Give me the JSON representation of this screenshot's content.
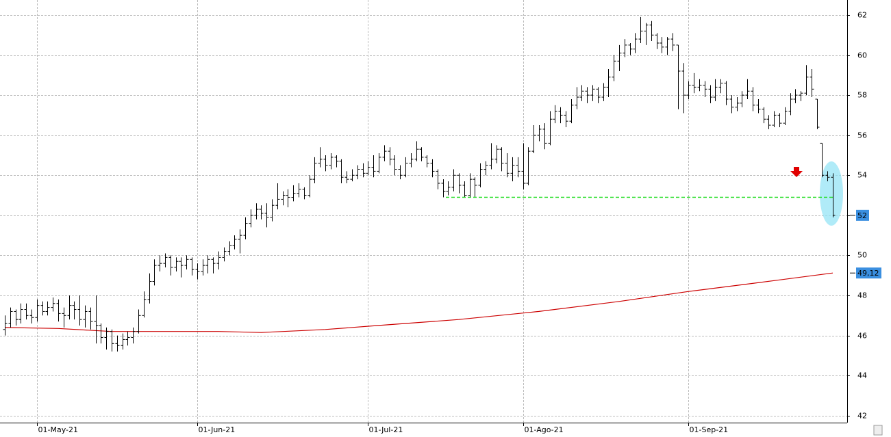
{
  "chart_data": {
    "type": "ohlc",
    "ylim": [
      41.65,
      62.75
    ],
    "yticks": [
      42,
      44,
      46,
      48,
      50,
      52,
      54,
      56,
      58,
      60,
      62
    ],
    "grid": true,
    "categories": [
      null,
      null,
      null,
      null,
      null,
      null,
      "01-May-21",
      null,
      null,
      null,
      null,
      null,
      null,
      null,
      null,
      null,
      null,
      null,
      null,
      null,
      null,
      null,
      null,
      null,
      null,
      null,
      null,
      null,
      null,
      null,
      null,
      null,
      null,
      null,
      null,
      null,
      "01-Jun-21",
      null,
      null,
      null,
      null,
      null,
      null,
      null,
      null,
      null,
      null,
      null,
      null,
      null,
      null,
      null,
      null,
      null,
      null,
      null,
      null,
      null,
      null,
      null,
      null,
      null,
      null,
      null,
      null,
      null,
      null,
      null,
      "01-Jul-21",
      null,
      null,
      null,
      null,
      null,
      null,
      null,
      null,
      null,
      null,
      null,
      null,
      null,
      null,
      null,
      null,
      null,
      null,
      null,
      null,
      null,
      null,
      null,
      null,
      null,
      null,
      null,
      null,
      "01-Ago-21",
      null,
      null,
      null,
      null,
      null,
      null,
      null,
      null,
      null,
      null,
      null,
      null,
      null,
      null,
      null,
      null,
      null,
      null,
      null,
      null,
      null,
      null,
      null,
      null,
      null,
      null,
      null,
      null,
      null,
      null,
      "01-Sep-21",
      null,
      null,
      null,
      null,
      null,
      null,
      null,
      null,
      null,
      null,
      null,
      null,
      null,
      null,
      null,
      null,
      null,
      null,
      null,
      null,
      null,
      null,
      null,
      null,
      null,
      null
    ],
    "series": [
      {
        "color": "#000000",
        "values": [
          [
            46.3,
            47.0,
            46.0,
            46.6
          ],
          [
            46.6,
            47.4,
            46.4,
            47.2
          ],
          [
            47.2,
            47.3,
            46.5,
            46.8
          ],
          [
            46.8,
            47.6,
            46.6,
            47.3
          ],
          [
            47.3,
            47.6,
            46.8,
            47.0
          ],
          [
            47.0,
            47.3,
            46.6,
            46.9
          ],
          [
            46.9,
            47.8,
            46.7,
            47.5
          ],
          [
            47.5,
            47.7,
            47.0,
            47.2
          ],
          [
            47.2,
            47.7,
            47.0,
            47.4
          ],
          [
            47.4,
            47.9,
            47.2,
            47.6
          ],
          [
            47.6,
            47.8,
            46.7,
            47.1
          ],
          [
            47.1,
            47.4,
            46.4,
            47.0
          ],
          [
            47.0,
            48.0,
            46.8,
            47.5
          ],
          [
            47.5,
            47.7,
            46.8,
            47.3
          ],
          [
            47.3,
            48.0,
            46.5,
            46.8
          ],
          [
            46.8,
            47.5,
            46.4,
            47.2
          ],
          [
            47.2,
            47.4,
            46.3,
            46.7
          ],
          [
            46.7,
            48.0,
            45.6,
            46.5
          ],
          [
            46.5,
            46.6,
            45.6,
            45.9
          ],
          [
            45.9,
            46.4,
            45.3,
            46.2
          ],
          [
            46.2,
            46.3,
            45.2,
            45.6
          ],
          [
            45.6,
            46.0,
            45.2,
            45.5
          ],
          [
            45.5,
            46.1,
            45.3,
            45.8
          ],
          [
            45.8,
            46.2,
            45.5,
            45.9
          ],
          [
            45.9,
            46.4,
            45.6,
            46.2
          ],
          [
            46.2,
            47.3,
            46.1,
            47.0
          ],
          [
            47.0,
            48.2,
            46.9,
            47.8
          ],
          [
            47.8,
            49.1,
            47.6,
            48.7
          ],
          [
            48.7,
            49.8,
            48.5,
            49.5
          ],
          [
            49.5,
            50.0,
            49.2,
            49.6
          ],
          [
            49.6,
            50.1,
            49.4,
            49.9
          ],
          [
            49.9,
            50.0,
            49.0,
            49.4
          ],
          [
            49.4,
            49.9,
            49.2,
            49.7
          ],
          [
            49.7,
            49.9,
            48.9,
            49.5
          ],
          [
            49.5,
            50.0,
            49.3,
            49.8
          ],
          [
            49.8,
            49.9,
            49.0,
            49.3
          ],
          [
            49.3,
            49.6,
            48.8,
            49.2
          ],
          [
            49.2,
            49.8,
            49.0,
            49.5
          ],
          [
            49.5,
            50.0,
            49.1,
            49.8
          ],
          [
            49.8,
            49.9,
            49.1,
            49.6
          ],
          [
            49.6,
            50.2,
            49.3,
            49.9
          ],
          [
            49.9,
            50.4,
            49.7,
            50.2
          ],
          [
            50.2,
            50.7,
            50.0,
            50.5
          ],
          [
            50.5,
            51.0,
            50.3,
            50.8
          ],
          [
            50.8,
            51.3,
            50.1,
            51.0
          ],
          [
            51.0,
            51.9,
            50.8,
            51.6
          ],
          [
            51.6,
            52.3,
            51.4,
            52.0
          ],
          [
            52.0,
            52.6,
            51.8,
            52.3
          ],
          [
            52.3,
            52.5,
            51.8,
            52.1
          ],
          [
            52.1,
            52.6,
            51.4,
            51.9
          ],
          [
            51.9,
            52.8,
            51.7,
            52.5
          ],
          [
            52.5,
            53.6,
            52.3,
            52.8
          ],
          [
            52.8,
            53.2,
            52.5,
            53.0
          ],
          [
            53.0,
            53.3,
            52.4,
            52.9
          ],
          [
            52.9,
            53.5,
            52.7,
            53.1
          ],
          [
            53.1,
            53.6,
            52.9,
            53.3
          ],
          [
            53.3,
            53.4,
            52.8,
            53.0
          ],
          [
            53.0,
            54.0,
            52.9,
            53.8
          ],
          [
            53.8,
            54.9,
            53.6,
            54.6
          ],
          [
            54.6,
            55.4,
            54.4,
            54.8
          ],
          [
            54.8,
            55.0,
            54.2,
            54.5
          ],
          [
            54.5,
            55.1,
            54.3,
            54.9
          ],
          [
            54.9,
            55.0,
            54.4,
            54.7
          ],
          [
            54.7,
            54.8,
            53.6,
            53.9
          ],
          [
            53.9,
            54.2,
            53.6,
            53.8
          ],
          [
            53.8,
            54.3,
            53.7,
            54.0
          ],
          [
            54.0,
            54.5,
            53.8,
            54.3
          ],
          [
            54.3,
            54.6,
            53.9,
            54.1
          ],
          [
            54.1,
            54.7,
            54.0,
            54.4
          ],
          [
            54.4,
            55.0,
            53.9,
            54.2
          ],
          [
            54.2,
            55.1,
            54.1,
            54.9
          ],
          [
            54.9,
            55.5,
            54.7,
            55.2
          ],
          [
            55.2,
            55.4,
            54.5,
            54.8
          ],
          [
            54.8,
            55.0,
            54.0,
            54.3
          ],
          [
            54.3,
            54.5,
            53.8,
            54.0
          ],
          [
            54.0,
            54.9,
            53.9,
            54.6
          ],
          [
            54.6,
            55.1,
            54.4,
            54.8
          ],
          [
            54.8,
            55.7,
            54.7,
            55.3
          ],
          [
            55.3,
            55.4,
            54.7,
            54.9
          ],
          [
            54.9,
            55.0,
            54.4,
            54.6
          ],
          [
            54.6,
            54.8,
            53.9,
            54.2
          ],
          [
            54.2,
            54.3,
            53.3,
            53.6
          ],
          [
            53.6,
            53.8,
            52.9,
            53.2
          ],
          [
            53.2,
            53.7,
            53.0,
            53.4
          ],
          [
            53.4,
            54.3,
            53.2,
            54.0
          ],
          [
            54.0,
            54.1,
            53.1,
            53.5
          ],
          [
            53.5,
            53.7,
            52.9,
            53.0
          ],
          [
            53.0,
            54.1,
            52.9,
            53.8
          ],
          [
            53.8,
            53.9,
            52.9,
            53.5
          ],
          [
            53.5,
            54.6,
            53.4,
            54.3
          ],
          [
            54.3,
            54.7,
            54.0,
            54.5
          ],
          [
            54.5,
            55.6,
            54.3,
            54.8
          ],
          [
            54.8,
            55.5,
            54.6,
            55.3
          ],
          [
            55.3,
            55.4,
            54.2,
            54.6
          ],
          [
            54.6,
            55.1,
            53.9,
            54.1
          ],
          [
            54.1,
            54.9,
            53.7,
            54.5
          ],
          [
            54.5,
            54.9,
            53.9,
            54.2
          ],
          [
            54.2,
            55.6,
            53.3,
            53.6
          ],
          [
            53.6,
            55.4,
            53.5,
            55.2
          ],
          [
            55.2,
            56.5,
            55.1,
            56.0
          ],
          [
            56.0,
            56.5,
            55.7,
            56.3
          ],
          [
            56.3,
            56.6,
            55.3,
            55.6
          ],
          [
            55.6,
            57.2,
            55.5,
            56.8
          ],
          [
            56.8,
            57.5,
            56.6,
            57.2
          ],
          [
            57.2,
            57.4,
            56.6,
            57.0
          ],
          [
            57.0,
            57.2,
            56.4,
            56.7
          ],
          [
            56.7,
            57.8,
            56.6,
            57.5
          ],
          [
            57.5,
            58.4,
            57.3,
            57.9
          ],
          [
            57.9,
            58.5,
            57.7,
            58.2
          ],
          [
            58.2,
            58.4,
            57.6,
            58.0
          ],
          [
            58.0,
            58.5,
            57.7,
            58.3
          ],
          [
            58.3,
            58.4,
            57.6,
            57.9
          ],
          [
            57.9,
            58.6,
            57.7,
            58.4
          ],
          [
            58.4,
            59.3,
            57.9,
            58.9
          ],
          [
            58.9,
            60.0,
            58.7,
            59.7
          ],
          [
            59.7,
            60.5,
            59.2,
            60.1
          ],
          [
            60.1,
            60.8,
            59.9,
            60.5
          ],
          [
            60.5,
            60.6,
            60.0,
            60.3
          ],
          [
            60.3,
            61.1,
            60.1,
            60.8
          ],
          [
            60.8,
            61.9,
            60.6,
            61.2
          ],
          [
            61.2,
            61.6,
            60.5,
            61.5
          ],
          [
            61.5,
            61.7,
            60.7,
            61.0
          ],
          [
            61.0,
            61.1,
            60.3,
            60.6
          ],
          [
            60.6,
            60.9,
            60.1,
            60.4
          ],
          [
            60.4,
            60.9,
            60.0,
            60.8
          ],
          [
            60.8,
            61.1,
            60.2,
            60.5
          ],
          [
            60.5,
            60.5,
            57.3,
            59.2
          ],
          [
            59.2,
            59.6,
            57.1,
            58.0
          ],
          [
            58.0,
            58.7,
            57.8,
            58.5
          ],
          [
            58.5,
            59.1,
            58.1,
            58.4
          ],
          [
            58.4,
            58.8,
            58.2,
            58.5
          ],
          [
            58.5,
            58.7,
            57.9,
            58.3
          ],
          [
            58.3,
            58.5,
            57.6,
            57.9
          ],
          [
            57.9,
            58.8,
            57.7,
            58.4
          ],
          [
            58.4,
            58.8,
            58.1,
            58.6
          ],
          [
            58.6,
            58.7,
            57.5,
            57.8
          ],
          [
            57.8,
            58.0,
            57.1,
            57.4
          ],
          [
            57.4,
            57.9,
            57.2,
            57.6
          ],
          [
            57.6,
            58.2,
            57.4,
            58.0
          ],
          [
            58.0,
            58.8,
            57.8,
            58.2
          ],
          [
            58.2,
            58.4,
            57.2,
            57.5
          ],
          [
            57.5,
            57.8,
            57.1,
            57.3
          ],
          [
            57.3,
            57.4,
            56.6,
            56.8
          ],
          [
            56.8,
            57.0,
            56.3,
            56.5
          ],
          [
            56.5,
            57.2,
            56.4,
            57.0
          ],
          [
            57.0,
            57.1,
            56.4,
            56.6
          ],
          [
            56.6,
            57.4,
            56.5,
            57.2
          ],
          [
            57.2,
            58.1,
            57.0,
            57.8
          ],
          [
            57.8,
            58.3,
            57.6,
            58.0
          ],
          [
            58.0,
            58.2,
            57.7,
            58.1
          ],
          [
            58.1,
            59.5,
            58.0,
            58.9
          ],
          [
            58.9,
            59.3,
            57.9,
            58.3
          ],
          [
            57.8,
            57.8,
            56.3,
            56.4
          ],
          [
            55.6,
            55.6,
            53.9,
            54.0
          ],
          [
            54.0,
            54.2,
            53.7,
            53.9
          ],
          [
            53.9,
            54.1,
            51.9,
            52.0
          ]
        ]
      }
    ],
    "moving_average": {
      "color": "#cc0000",
      "x": [
        0,
        10,
        20,
        40,
        48,
        60,
        70,
        85,
        100,
        115,
        128,
        140,
        155
      ],
      "values": [
        46.4,
        46.35,
        46.2,
        46.2,
        46.15,
        46.3,
        46.5,
        46.8,
        47.2,
        47.7,
        48.2,
        48.6,
        49.12
      ]
    },
    "hline": {
      "value": 52.9,
      "color": "#22dd22"
    },
    "price_labels": [
      {
        "value": 52,
        "label": "52"
      },
      {
        "value": 49.12,
        "label": "49,12"
      }
    ]
  }
}
